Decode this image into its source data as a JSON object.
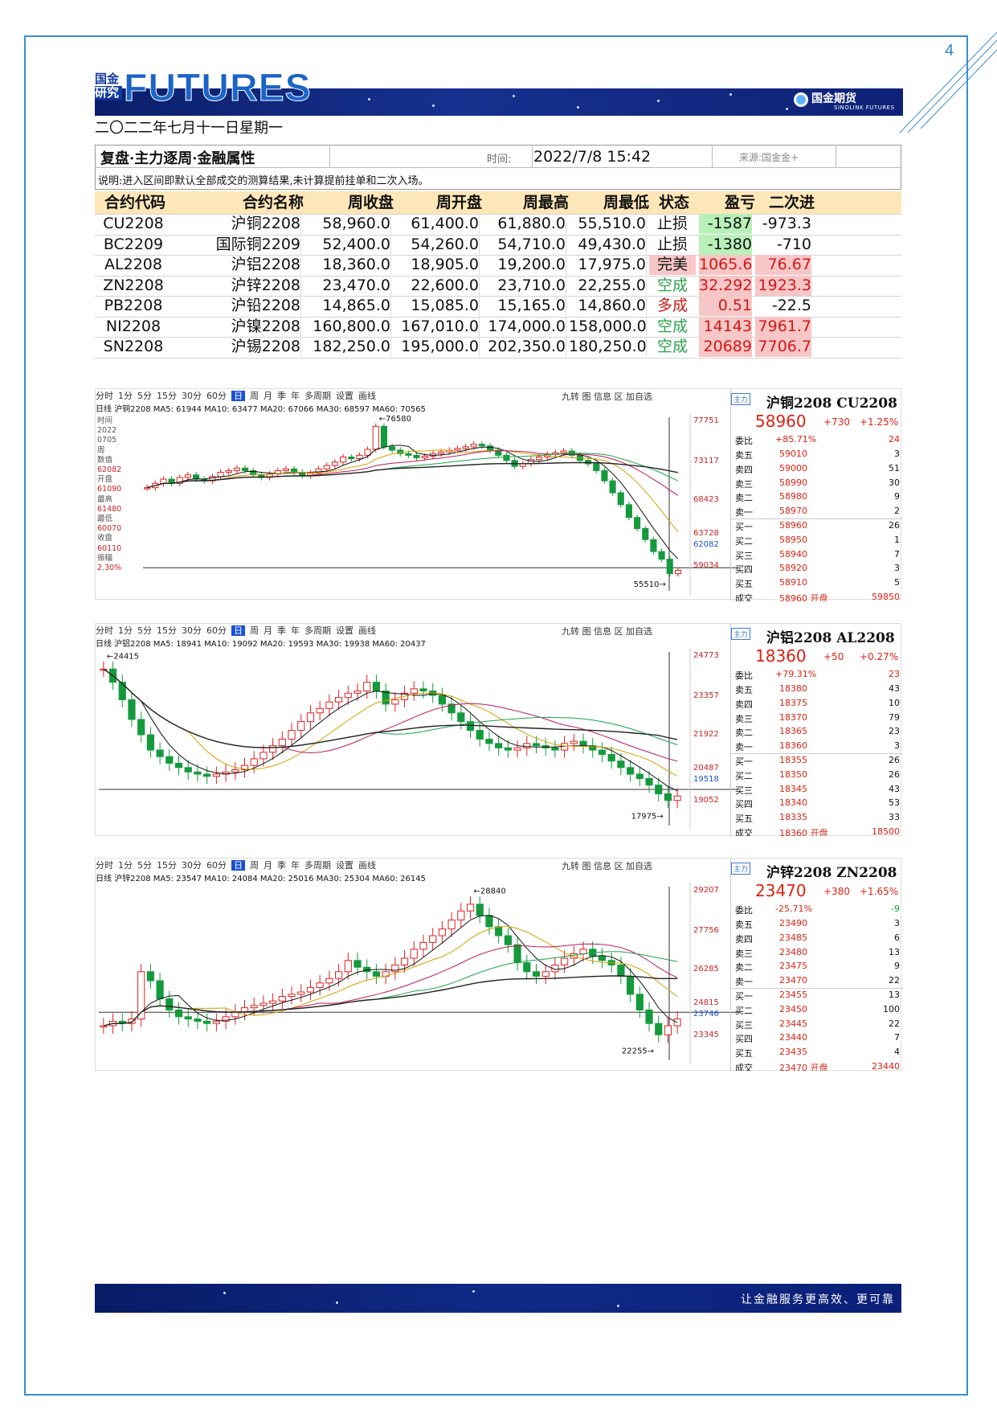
{
  "page_number": "4",
  "header": {
    "logo_cn_line1": "国金",
    "logo_cn_line2": "研究",
    "logo_text": "FUTURES",
    "brand": "国金期货",
    "brand_en": "SINOLINK FUTURES",
    "date": "二〇二二年七月十一日星期一"
  },
  "table": {
    "title": "复盘·主力逐周·金融属性",
    "time_label": "时间:",
    "time_value": "2022/7/8 15:42",
    "source": "来源:国金金+",
    "note": "说明:进入区间即默认全部成交的测算结果,未计算提前挂单和二次入场。",
    "columns": [
      "合约代码",
      "合约名称",
      "周收盘",
      "周开盘",
      "周最高",
      "周最低",
      "状态",
      "盈亏",
      "二次进"
    ],
    "rows": [
      [
        "CU2208",
        "沪铜2208",
        "58,960.0",
        "61,400.0",
        "61,880.0",
        "55,510.0",
        "止损",
        "-1587",
        "-973.3"
      ],
      [
        "BC2209",
        "国际铜2209",
        "52,400.0",
        "54,260.0",
        "54,710.0",
        "49,430.0",
        "止损",
        "-1380",
        "-710"
      ],
      [
        "AL2208",
        "沪铝2208",
        "18,360.0",
        "18,905.0",
        "19,200.0",
        "17,975.0",
        "完美",
        "1065.6",
        "76.67"
      ],
      [
        "ZN2208",
        "沪锌2208",
        "23,470.0",
        "22,600.0",
        "23,710.0",
        "22,255.0",
        "空成",
        "32.292",
        "1923.3"
      ],
      [
        "PB2208",
        "沪铅2208",
        "14,865.0",
        "15,085.0",
        "15,165.0",
        "14,860.0",
        "多成",
        "0.51",
        "-22.5"
      ],
      [
        "NI2208",
        "沪镍2208",
        "160,800.0",
        "167,010.0",
        "174,000.0",
        "158,000.0",
        "空成",
        "14143",
        "7961.7"
      ],
      [
        "SN2208",
        "沪锡2208",
        "182,250.0",
        "195,000.0",
        "202,350.0",
        "180,250.0",
        "空成",
        "20689",
        "7706.7"
      ]
    ]
  },
  "toolbar": [
    "分时",
    "1分",
    "5分",
    "15分",
    "30分",
    "60分",
    "日",
    "周",
    "月",
    "季",
    "年",
    "多周期",
    "设置",
    "画线"
  ],
  "toolbar_right": "九转 图 信息 区 加自选",
  "charts": [
    {
      "mabar": "日线 沪铜2208 MA5: 61944 MA10: 63477 MA20: 67066 MA30: 68597 MA60: 70565",
      "axis": [
        "77751",
        "73117",
        "68423",
        "63728",
        "62082",
        "59034"
      ],
      "high_label": "76580",
      "low_label": "55510",
      "side": [
        "时间",
        "2022",
        "0705",
        "周",
        "数值",
        "62082",
        "开盘",
        "61090",
        "最高",
        "61480",
        "最低",
        "60070",
        "收盘",
        "60110",
        "振幅",
        "2.30%"
      ],
      "quote": {
        "tag": "主力",
        "title": "沪铜2208 CU2208",
        "price": "58960",
        "change": "+730",
        "pct": "+1.25%",
        "ratio_label": "委比",
        "ratio": "+85.71%",
        "ratio_v": "24",
        "book": [
          [
            "卖五",
            "59010",
            "3"
          ],
          [
            "卖四",
            "59000",
            "51"
          ],
          [
            "卖三",
            "58990",
            "30"
          ],
          [
            "卖二",
            "58980",
            "9"
          ],
          [
            "卖一",
            "58970",
            "2"
          ],
          [
            "买一",
            "58960",
            "26"
          ],
          [
            "买二",
            "58950",
            "1"
          ],
          [
            "买三",
            "58940",
            "7"
          ],
          [
            "买四",
            "58920",
            "3"
          ],
          [
            "买五",
            "58910",
            "5"
          ]
        ],
        "last_label": "成交",
        "last": "58960 开盘",
        "last_v": "59850"
      },
      "candles": [
        69,
        69.5,
        70,
        69.5,
        70.2,
        70.5,
        70,
        69.8,
        70.3,
        70.8,
        71,
        71.3,
        71,
        70.5,
        70.2,
        70.6,
        71,
        71.2,
        70.8,
        70.4,
        70.7,
        71.2,
        71.6,
        72,
        72.6,
        72.4,
        72.8,
        73.5,
        76.2,
        73.8,
        73.4,
        73,
        72.8,
        72.5,
        72.7,
        73,
        73.2,
        73.4,
        73.6,
        73.8,
        74.1,
        73.9,
        73.4,
        72.8,
        72.2,
        71.5,
        71.8,
        72.3,
        72.6,
        72.9,
        73.1,
        73.3,
        72.8,
        72.2,
        71.8,
        71,
        69.8,
        68.4,
        67,
        65.5,
        64.2,
        62.9,
        61.5,
        60.6,
        58.9,
        59.3
      ]
    },
    {
      "mabar": "日线 沪铝2208 MA5: 18941 MA10: 19092 MA20: 19593 MA30: 19938 MA60: 20437",
      "axis": [
        "24773",
        "23357",
        "21922",
        "20487",
        "19518",
        "19052"
      ],
      "high_label": "24415",
      "low_label": "17975",
      "quote": {
        "tag": "主力",
        "title": "沪铝2208 AL2208",
        "price": "18360",
        "change": "+50",
        "pct": "+0.27%",
        "ratio_label": "委比",
        "ratio": "+79.31%",
        "ratio_v": "23",
        "book": [
          [
            "卖五",
            "18380",
            "43"
          ],
          [
            "卖四",
            "18375",
            "10"
          ],
          [
            "卖三",
            "18370",
            "79"
          ],
          [
            "卖二",
            "18365",
            "23"
          ],
          [
            "卖一",
            "18360",
            "3"
          ],
          [
            "买一",
            "18355",
            "26"
          ],
          [
            "买二",
            "18350",
            "26"
          ],
          [
            "买三",
            "18345",
            "43"
          ],
          [
            "买四",
            "18340",
            "53"
          ],
          [
            "买五",
            "18335",
            "33"
          ]
        ],
        "last_label": "成交",
        "last": "18360 开盘",
        "last_v": "18500"
      },
      "candles": [
        24.2,
        23.6,
        22.8,
        21.9,
        21.2,
        20.5,
        20.2,
        19.9,
        19.7,
        19.5,
        19.4,
        19.3,
        19.4,
        19.5,
        19.6,
        19.8,
        20.1,
        20.4,
        20.7,
        21.0,
        21.4,
        21.8,
        22.2,
        22.4,
        22.7,
        22.9,
        23.1,
        23.2,
        23.6,
        23.2,
        22.6,
        22.8,
        23.1,
        23.3,
        23.2,
        23.0,
        22.6,
        22.2,
        21.8,
        21.4,
        21.0,
        20.8,
        20.6,
        20.5,
        20.6,
        20.8,
        20.7,
        20.6,
        20.5,
        20.8,
        20.9,
        20.7,
        20.5,
        20.3,
        20.0,
        19.7,
        19.4,
        19.2,
        18.9,
        18.5,
        18.2,
        18.4
      ]
    },
    {
      "mabar": "日线 沪锌2208 MA5: 23547 MA10: 24084 MA20: 25016 MA30: 25304 MA60: 26145",
      "axis": [
        "29207",
        "27756",
        "26285",
        "24815",
        "23746",
        "23345"
      ],
      "high_label": "28840",
      "low_label": "22255",
      "quote": {
        "tag": "主力",
        "title": "沪锌2208 ZN2208",
        "price": "23470",
        "change": "+380",
        "pct": "+1.65%",
        "ratio_label": "委比",
        "ratio": "-25.71%",
        "ratio_v": "-9",
        "book": [
          [
            "卖五",
            "23490",
            "3"
          ],
          [
            "卖四",
            "23485",
            "6"
          ],
          [
            "卖三",
            "23480",
            "13"
          ],
          [
            "卖二",
            "23475",
            "9"
          ],
          [
            "卖一",
            "23470",
            "22"
          ],
          [
            "买一",
            "23455",
            "13"
          ],
          [
            "买二",
            "23450",
            "100"
          ],
          [
            "买三",
            "23445",
            "22"
          ],
          [
            "买四",
            "23440",
            "7"
          ],
          [
            "买五",
            "23435",
            "4"
          ]
        ],
        "last_label": "成交",
        "last": "23470 开盘",
        "last_v": "23440"
      },
      "candles": [
        23.2,
        23.4,
        23.3,
        23.5,
        25.6,
        25.2,
        24.4,
        23.9,
        23.6,
        23.5,
        23.4,
        23.3,
        23.4,
        23.6,
        23.8,
        24.0,
        24.1,
        24.2,
        24.3,
        24.5,
        24.6,
        24.7,
        24.9,
        25.1,
        25.3,
        25.6,
        26.1,
        25.8,
        25.6,
        25.4,
        25.6,
        25.9,
        26.2,
        26.6,
        26.9,
        27.2,
        27.5,
        27.9,
        28.3,
        28.6,
        28.1,
        27.6,
        27.2,
        26.8,
        26.0,
        25.6,
        25.4,
        25.6,
        25.9,
        26.2,
        26.4,
        26.6,
        26.3,
        26.1,
        25.9,
        25.4,
        24.6,
        23.9,
        23.3,
        22.8,
        23.2,
        23.5
      ]
    }
  ],
  "footer": "让金融服务更高效、更可靠"
}
